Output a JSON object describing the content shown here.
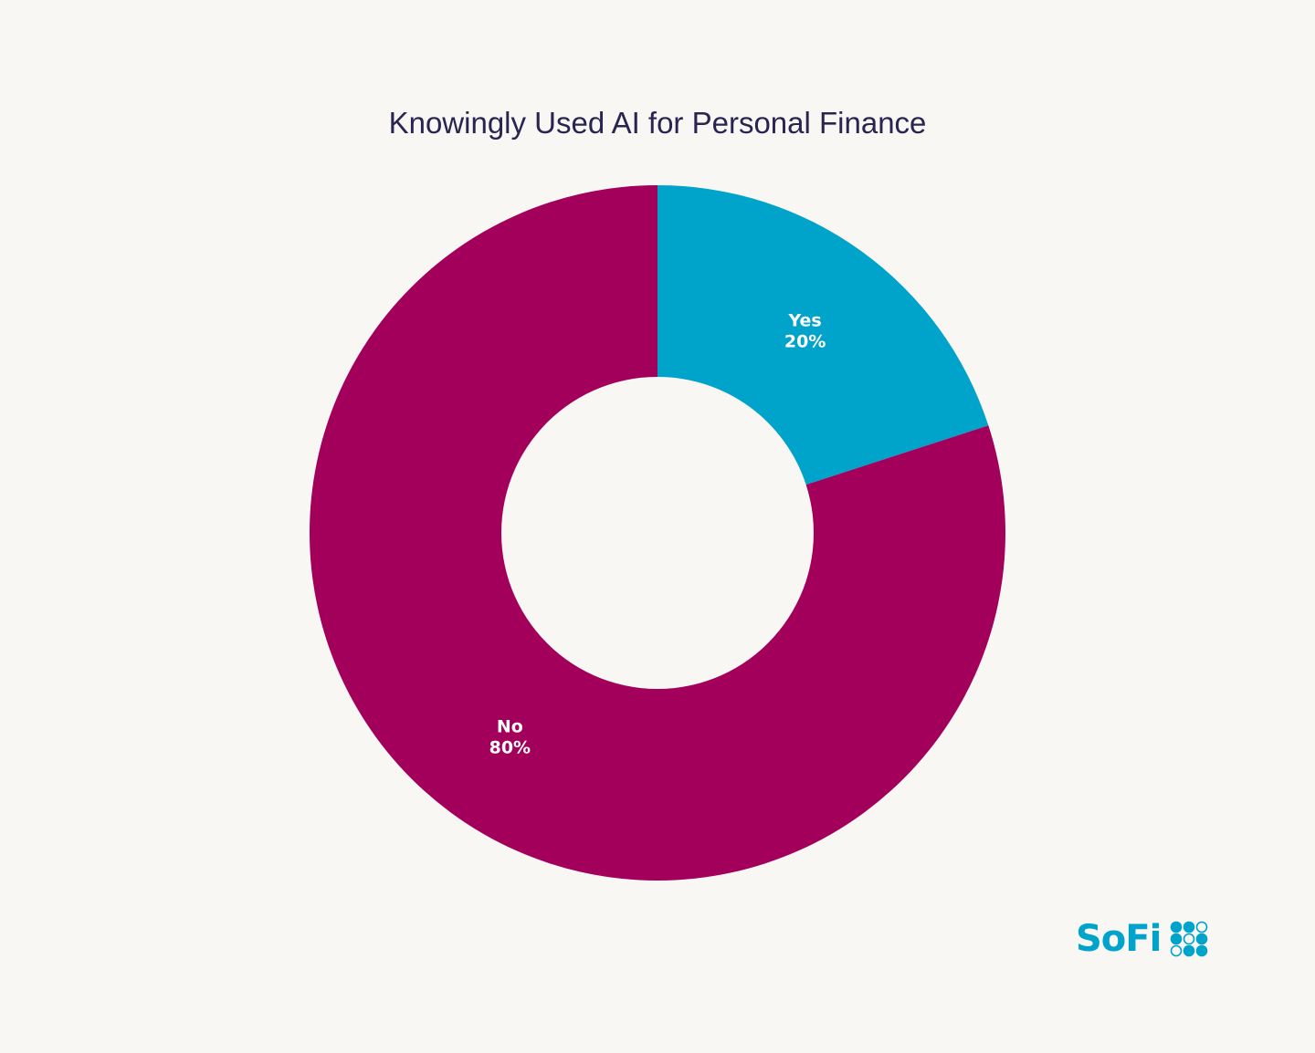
{
  "chart_data": {
    "type": "pie",
    "donut": true,
    "title": "Knowingly Used AI for Personal Finance",
    "categories": [
      "Yes",
      "No"
    ],
    "values": [
      20,
      80
    ],
    "value_labels": [
      "20%",
      "80%"
    ],
    "colors": [
      "#00a3c9",
      "#a3005c"
    ],
    "start_angle": "top",
    "direction": "clockwise"
  },
  "logo": {
    "text": "SoFi",
    "color": "#00a3c9"
  }
}
